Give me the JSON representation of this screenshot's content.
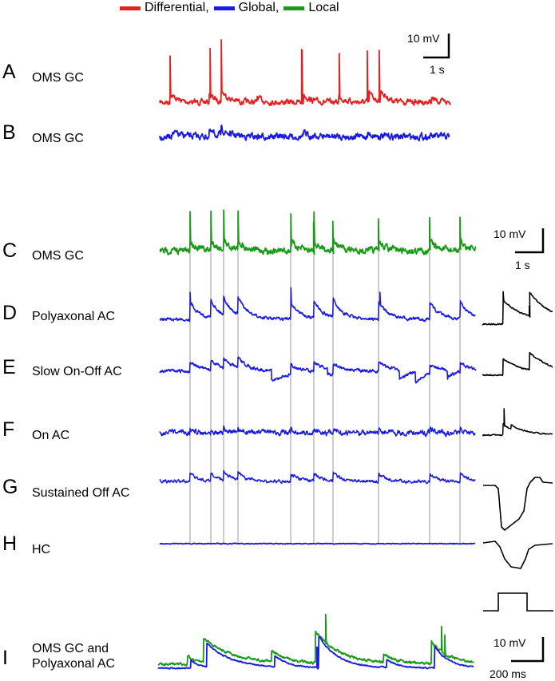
{
  "legend": [
    {
      "label": "Differential,",
      "color": "#e62020"
    },
    {
      "label": "Global,",
      "color": "#1a1ae6"
    },
    {
      "label": "Local",
      "color": "#199a19"
    }
  ],
  "colors": {
    "red": "#e62020",
    "blue": "#1a1ae6",
    "green": "#199a19",
    "black": "#000000",
    "vline": "#9a9a9a"
  },
  "panels": [
    {
      "letter": "A",
      "label": "OMS GC"
    },
    {
      "letter": "B",
      "label": "OMS GC"
    },
    {
      "letter": "C",
      "label": "OMS GC"
    },
    {
      "letter": "D",
      "label": "Polyaxonal AC"
    },
    {
      "letter": "E",
      "label": "Slow On-Off AC"
    },
    {
      "letter": "F",
      "label": "On AC"
    },
    {
      "letter": "G",
      "label": "Sustained Off AC"
    },
    {
      "letter": "H",
      "label": "HC"
    },
    {
      "letter": "I",
      "label": "OMS GC and\nPolyaxonal AC"
    }
  ],
  "scalebars": {
    "top": {
      "v": "10 mV",
      "h": "1 s"
    },
    "mid": {
      "v": "10 mV",
      "h": "1 s"
    },
    "bottom": {
      "v": "10 mV",
      "h": "200 ms"
    }
  }
}
